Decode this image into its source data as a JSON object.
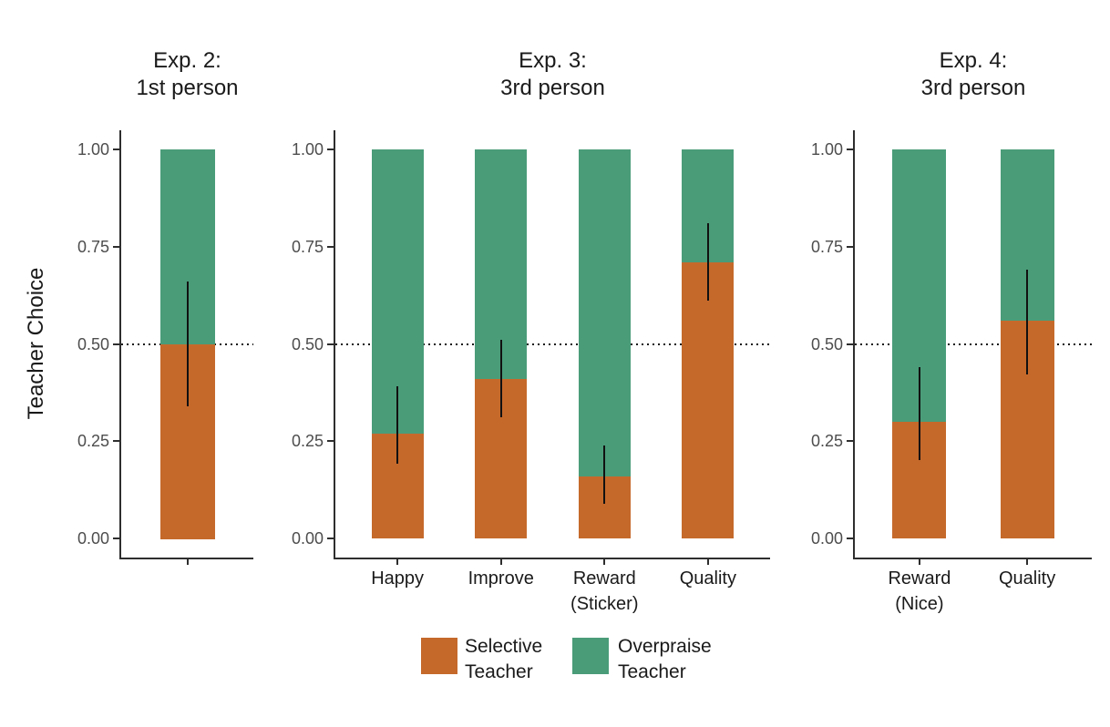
{
  "figure": {
    "ylabel": "Teacher Choice",
    "legend_items": [
      {
        "label": "Selective\nTeacher",
        "series": "selective",
        "color": "#C5692B"
      },
      {
        "label": "Overpraise\nTeacher",
        "series": "overpraise",
        "color": "#4A9C79"
      }
    ]
  },
  "chart_data": {
    "type": "bar",
    "stacked": true,
    "ylabel": "Teacher Choice",
    "ylim": [
      0,
      1
    ],
    "yticks": [
      0,
      0.25,
      0.5,
      0.75,
      1
    ],
    "reference_line": 0.5,
    "grid": "off",
    "legend_position": "bottom",
    "series": [
      {
        "name": "Selective Teacher",
        "color": "#C5692B"
      },
      {
        "name": "Overpraise Teacher",
        "color": "#4A9C79"
      }
    ],
    "error_bars": "95% CI on Selective Teacher proportion",
    "panels": [
      {
        "title": "Exp. 2:\n1st person",
        "bars": [
          {
            "category": "",
            "selective": 0.5,
            "overpraise": 0.5,
            "ci_low": 0.34,
            "ci_high": 0.66
          }
        ]
      },
      {
        "title": "Exp. 3:\n3rd person",
        "bars": [
          {
            "category": "Happy",
            "selective": 0.27,
            "overpraise": 0.73,
            "ci_low": 0.19,
            "ci_high": 0.39
          },
          {
            "category": "Improve",
            "selective": 0.41,
            "overpraise": 0.59,
            "ci_low": 0.31,
            "ci_high": 0.51
          },
          {
            "category": "Reward\n(Sticker)",
            "selective": 0.16,
            "overpraise": 0.84,
            "ci_low": 0.09,
            "ci_high": 0.24
          },
          {
            "category": "Quality",
            "selective": 0.71,
            "overpraise": 0.29,
            "ci_low": 0.61,
            "ci_high": 0.81
          }
        ]
      },
      {
        "title": "Exp. 4:\n3rd person",
        "bars": [
          {
            "category": "Reward\n(Nice)",
            "selective": 0.3,
            "overpraise": 0.7,
            "ci_low": 0.2,
            "ci_high": 0.44
          },
          {
            "category": "Quality",
            "selective": 0.56,
            "overpraise": 0.44,
            "ci_low": 0.42,
            "ci_high": 0.69
          }
        ]
      }
    ]
  }
}
